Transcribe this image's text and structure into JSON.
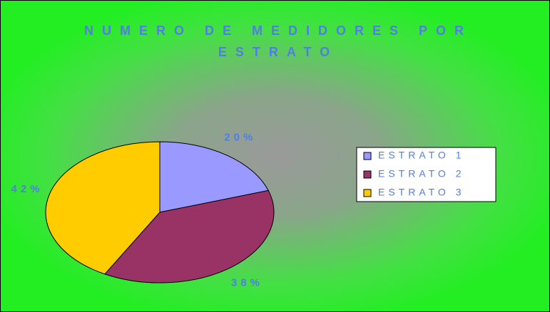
{
  "chart_data": {
    "type": "pie",
    "title": "NUMERO DE MEDIDORES POR ESTRATO",
    "categories": [
      "ESTRATO 1",
      "ESTRATO 2",
      "ESTRATO 3"
    ],
    "values": [
      20,
      38,
      42
    ],
    "value_labels": [
      "20%",
      "38%",
      "42%"
    ],
    "colors": [
      "#9999ff",
      "#993366",
      "#ffcc00"
    ],
    "legend": "right"
  }
}
